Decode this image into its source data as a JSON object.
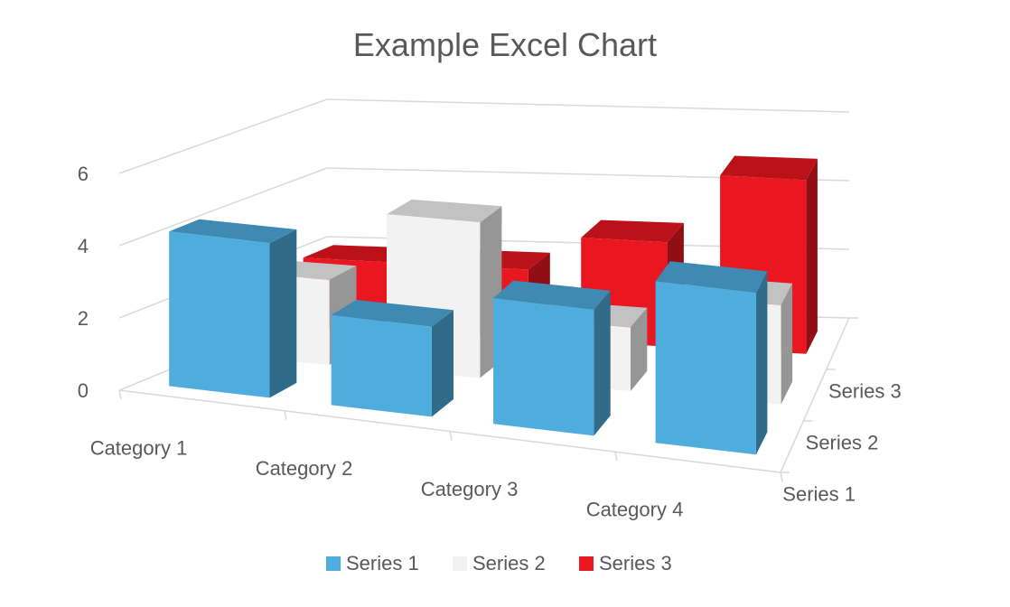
{
  "chart_data": {
    "type": "bar",
    "variant": "3d-column",
    "title": "Example Excel Chart",
    "categories": [
      "Category 1",
      "Category 2",
      "Category 3",
      "Category 4"
    ],
    "series": [
      {
        "name": "Series 1",
        "values": [
          4.3,
          2.5,
          3.5,
          4.5
        ],
        "color": "#4fadde"
      },
      {
        "name": "Series 2",
        "values": [
          2.4,
          4.4,
          1.8,
          2.8
        ],
        "color": "#f2f2f2"
      },
      {
        "name": "Series 3",
        "values": [
          2.0,
          2.0,
          3.0,
          5.0
        ],
        "color": "#ea1620"
      }
    ],
    "ylim": [
      0,
      6
    ],
    "yticks": [
      "0",
      "2",
      "4",
      "6"
    ],
    "xlabel": "",
    "ylabel": "",
    "grid": true,
    "legend_position": "bottom"
  }
}
